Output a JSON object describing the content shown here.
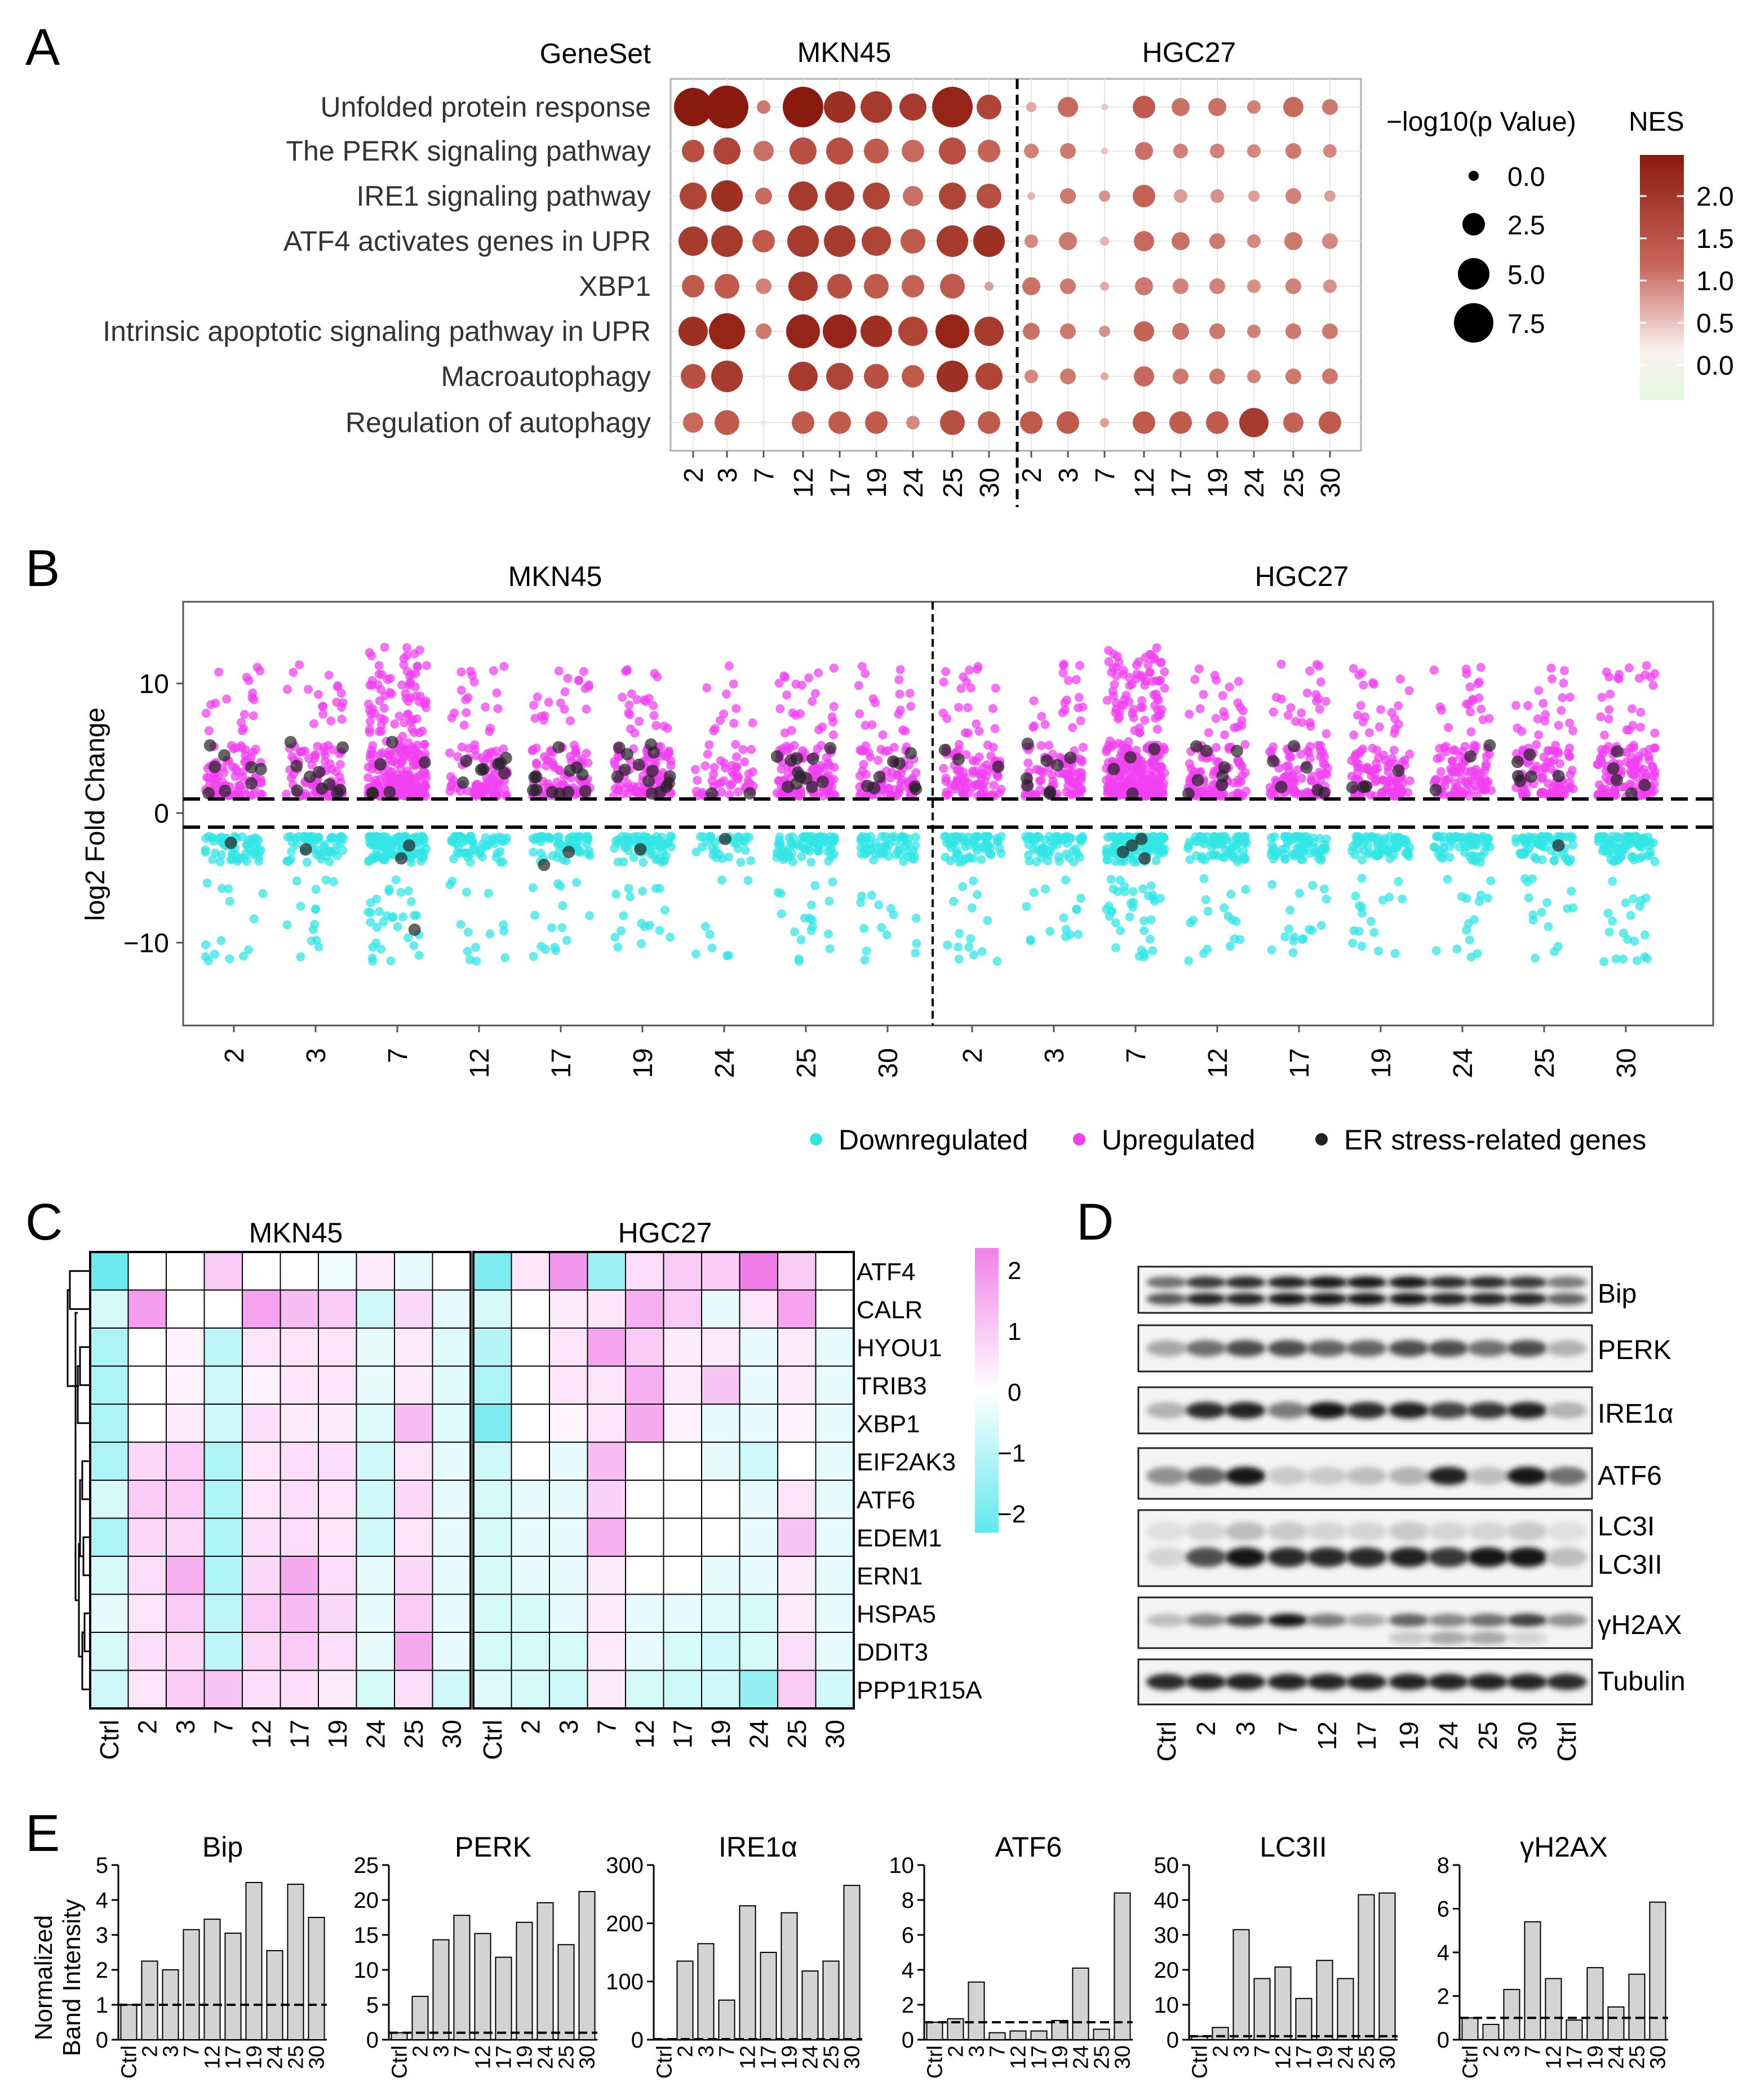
{
  "panel_labels": {
    "A": "A",
    "B": "B",
    "C": "C",
    "D": "D",
    "E": "E"
  },
  "panel_a": {
    "geneset_header": "GeneSet",
    "groups": [
      "MKN45",
      "HGC27"
    ],
    "timepoints": [
      "2",
      "3",
      "7",
      "12",
      "17",
      "19",
      "24",
      "25",
      "30"
    ],
    "pathways": [
      "Unfolded protein response",
      "The PERK signaling pathway",
      "IRE1 signaling pathway",
      "ATF4 activates genes in UPR",
      "XBP1",
      "Intrinsic apoptotic signaling pathway in UPR",
      "Macroautophagy",
      "Regulation of autophagy"
    ],
    "size_legend": {
      "title": "−log10(p Value)",
      "labels": [
        "0.0",
        "2.5",
        "5.0",
        "7.5"
      ]
    },
    "color_legend": {
      "title": "NES",
      "labels": [
        "2.0",
        "1.5",
        "1.0",
        "0.5",
        "0.0"
      ]
    }
  },
  "panel_b": {
    "groups": [
      "MKN45",
      "HGC27"
    ],
    "timepoints": [
      "2",
      "3",
      "7",
      "12",
      "17",
      "19",
      "24",
      "25",
      "30"
    ],
    "ylabel": "log2 Fold Change",
    "yticks": [
      "10",
      "0",
      "−10"
    ],
    "legend": [
      "Downregulated",
      "Upregulated",
      "ER stress-related genes"
    ],
    "colors": {
      "down": "#33E6E6",
      "up": "#F040F0",
      "er": "#222222"
    }
  },
  "panel_c": {
    "groups": [
      "MKN45",
      "HGC27"
    ],
    "columns": [
      "Ctrl",
      "2",
      "3",
      "7",
      "12",
      "17",
      "19",
      "24",
      "25",
      "30"
    ],
    "genes": [
      "ATF4",
      "CALR",
      "HYOU1",
      "TRIB3",
      "XBP1",
      "EIF2AK3",
      "ATF6",
      "EDEM1",
      "ERN1",
      "HSPA5",
      "DDIT3",
      "PPP1R15A"
    ],
    "scale_labels": [
      "2",
      "1",
      "0",
      "−1",
      "−2"
    ]
  },
  "panel_d": {
    "proteins": [
      "Bip",
      "PERK",
      "IRE1α",
      "ATF6",
      "LC3I",
      "LC3II",
      "γH2AX",
      "Tubulin"
    ],
    "lanes": [
      "Ctrl",
      "2",
      "3",
      "7",
      "12",
      "17",
      "19",
      "24",
      "25",
      "30",
      "Ctrl"
    ]
  },
  "panel_e": {
    "ylabel_line1": "Normalized",
    "ylabel_line2": "Band Intensity",
    "categories": [
      "Ctrl",
      "2",
      "3",
      "7",
      "12",
      "17",
      "19",
      "24",
      "25",
      "30"
    ]
  },
  "chart_data": [
    {
      "type": "bar",
      "title": "Bip",
      "categories": [
        "Ctrl",
        "2",
        "3",
        "7",
        "12",
        "17",
        "19",
        "24",
        "25",
        "30"
      ],
      "values": [
        1,
        2.25,
        2.0,
        3.15,
        3.45,
        3.05,
        4.5,
        2.55,
        4.45,
        3.5
      ],
      "ylim": [
        0,
        5
      ],
      "yticks": [
        "0",
        "1",
        "2",
        "3",
        "4",
        "5"
      ],
      "dashed_line_at": 1
    },
    {
      "type": "bar",
      "title": "PERK",
      "categories": [
        "Ctrl",
        "2",
        "3",
        "7",
        "12",
        "17",
        "19",
        "24",
        "25",
        "30"
      ],
      "values": [
        1,
        6.2,
        14.3,
        17.8,
        15.2,
        11.8,
        16.8,
        19.6,
        13.6,
        21.2
      ],
      "ylim": [
        0,
        25
      ],
      "yticks": [
        "0",
        "5",
        "10",
        "15",
        "20",
        "25"
      ],
      "dashed_line_at": 1
    },
    {
      "type": "bar",
      "title": "IRE1α",
      "categories": [
        "Ctrl",
        "2",
        "3",
        "7",
        "12",
        "17",
        "19",
        "24",
        "25",
        "30"
      ],
      "values": [
        1,
        135,
        165,
        68,
        230,
        150,
        218,
        118,
        135,
        265
      ],
      "ylim": [
        0,
        300
      ],
      "yticks": [
        "0",
        "100",
        "200",
        "300"
      ],
      "dashed_line_at": 1
    },
    {
      "type": "bar",
      "title": "ATF6",
      "categories": [
        "Ctrl",
        "2",
        "3",
        "7",
        "12",
        "17",
        "19",
        "24",
        "25",
        "30"
      ],
      "values": [
        1,
        1.2,
        3.3,
        0.4,
        0.5,
        0.5,
        1.1,
        4.1,
        0.6,
        8.4
      ],
      "ylim": [
        0,
        10
      ],
      "yticks": [
        "0",
        "2",
        "4",
        "6",
        "8",
        "10"
      ],
      "dashed_line_at": 1
    },
    {
      "type": "bar",
      "title": "LC3II",
      "categories": [
        "Ctrl",
        "2",
        "3",
        "7",
        "12",
        "17",
        "19",
        "24",
        "25",
        "30"
      ],
      "values": [
        1,
        3.5,
        31.5,
        17.5,
        20.8,
        11.8,
        22.7,
        17.5,
        41.5,
        42.0
      ],
      "ylim": [
        0,
        50
      ],
      "yticks": [
        "0",
        "10",
        "20",
        "30",
        "40",
        "50"
      ],
      "dashed_line_at": 1
    },
    {
      "type": "bar",
      "title": "γH2AX",
      "categories": [
        "Ctrl",
        "2",
        "3",
        "7",
        "12",
        "17",
        "19",
        "24",
        "25",
        "30"
      ],
      "values": [
        1,
        0.7,
        2.3,
        5.4,
        2.8,
        0.9,
        3.3,
        1.5,
        3.0,
        6.3
      ],
      "ylim": [
        0,
        8
      ],
      "yticks": [
        "0",
        "2",
        "4",
        "6",
        "8"
      ],
      "dashed_line_at": 1
    }
  ],
  "colors": {
    "bar_fill": "#D3D3D3",
    "nes_high": "#8B1A0E",
    "nes_mid": "#C8665A",
    "nes_low": "#F8EEEE",
    "nes_neg": "#E3F7E1"
  }
}
